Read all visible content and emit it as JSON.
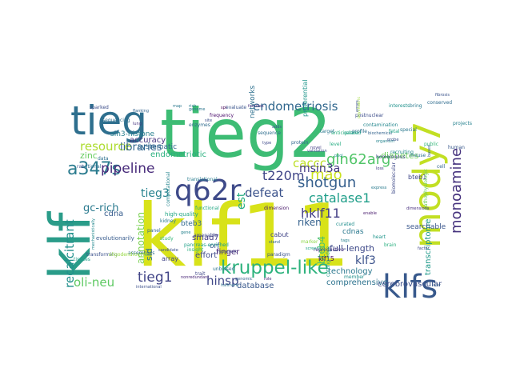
{
  "wordcloud": {
    "words": [
      {
        "text": "klf11",
        "color": "#d8e219"
      },
      {
        "text": "tieg2",
        "color": "#3dbc74"
      },
      {
        "text": "klf",
        "color": "#2a9c89"
      },
      {
        "text": "tieg",
        "color": "#2e6f8e"
      },
      {
        "text": "mody7",
        "color": "#c2df23"
      },
      {
        "text": "klfs",
        "color": "#38598c"
      },
      {
        "text": "q62r",
        "color": "#3e4a89"
      },
      {
        "text": "kruppel-like",
        "color": "#2db27d"
      },
      {
        "text": "endometriosis",
        "color": "#31678e"
      },
      {
        "text": "a347s",
        "color": "#2a7b8e"
      },
      {
        "text": "monoamine",
        "color": "#46337e"
      },
      {
        "text": "pipeline",
        "color": "#472a7a"
      },
      {
        "text": "gln62arg",
        "color": "#52c569"
      },
      {
        "text": "shotgun",
        "color": "#355f8d"
      },
      {
        "text": "recalcitrant",
        "color": "#21908c"
      },
      {
        "text": "tieg1",
        "color": "#414487"
      },
      {
        "text": "catalase1",
        "color": "#1f9e89"
      },
      {
        "text": "hklf11",
        "color": "#433e85"
      },
      {
        "text": "mao",
        "color": "#cae11f"
      },
      {
        "text": "defeat",
        "color": "#3b528b"
      },
      {
        "text": "resource",
        "color": "#addc30"
      },
      {
        "text": "caccc",
        "color": "#bddf26"
      },
      {
        "text": "t220m",
        "color": "#404688"
      },
      {
        "text": "msin3a",
        "color": "#443983"
      },
      {
        "text": "tieg3",
        "color": "#26828e"
      },
      {
        "text": "oli-neu",
        "color": "#5ec962"
      },
      {
        "text": "annotation",
        "color": "#7ad151"
      },
      {
        "text": "hinsp",
        "color": "#3f4788"
      },
      {
        "text": "libraries",
        "color": "#32648e"
      },
      {
        "text": "gc-rich",
        "color": "#29798e"
      },
      {
        "text": "bteb4",
        "color": "#4ac16d"
      },
      {
        "text": "sid",
        "color": "#2c718e"
      },
      {
        "text": "est",
        "color": "#25ac82"
      },
      {
        "text": "riken",
        "color": "#34618d"
      },
      {
        "text": "klf3",
        "color": "#3b528b"
      },
      {
        "text": "full-length",
        "color": "#3e4989"
      },
      {
        "text": "technology",
        "color": "#2a778e"
      },
      {
        "text": "diabetes",
        "color": "#6ccd5a"
      },
      {
        "text": "transcriptome",
        "color": "#1f998a"
      },
      {
        "text": "comprehensive",
        "color": "#2c728e"
      },
      {
        "text": "database",
        "color": "#38588c"
      },
      {
        "text": "cerebrovascular",
        "color": "#3c4f8a"
      },
      {
        "text": "finger",
        "color": "#482878"
      },
      {
        "text": "sin3-histone",
        "color": "#277f8e"
      },
      {
        "text": "systematic",
        "color": "#31688e"
      },
      {
        "text": "accuracy",
        "color": "#46327e"
      },
      {
        "text": "endometriotic",
        "color": "#2ab07f"
      },
      {
        "text": "zinc",
        "color": "#65cb5e"
      },
      {
        "text": "cdna",
        "color": "#365c8d"
      },
      {
        "text": "smad7",
        "color": "#443a83"
      },
      {
        "text": "bteb3",
        "color": "#31688e"
      },
      {
        "text": "effort",
        "color": "#3e4a89"
      },
      {
        "text": "array",
        "color": "#404688"
      },
      {
        "text": "orf",
        "color": "#3b528b"
      },
      {
        "text": "cabut",
        "color": "#414487"
      },
      {
        "text": "cdnas",
        "color": "#2a788e"
      },
      {
        "text": "searchable",
        "color": "#39568c"
      },
      {
        "text": "bteb1",
        "color": "#3f4788"
      },
      {
        "text": "klf15",
        "color": "#440154"
      },
      {
        "text": "preferential",
        "color": "#1f958b"
      },
      {
        "text": "networks",
        "color": "#2d708e"
      },
      {
        "text": "high-quality",
        "color": "#22a785"
      },
      {
        "text": "evolutionarily",
        "color": "#375b8d"
      },
      {
        "text": "assemblies",
        "color": "#2f6b8e"
      },
      {
        "text": "international",
        "color": "#3c508b"
      },
      {
        "text": "reproductive",
        "color": "#462f7e"
      },
      {
        "text": "paradigm",
        "color": "#3a548c"
      },
      {
        "text": "unbiased",
        "color": "#2b748e"
      },
      {
        "text": "cutting-edge",
        "color": "#1e9b8a"
      },
      {
        "text": "computational",
        "color": "#25848e"
      },
      {
        "text": "translational",
        "color": "#287c8e"
      },
      {
        "text": "mechanistically",
        "color": "#23898e"
      },
      {
        "text": "screening",
        "color": "#20a386"
      },
      {
        "text": "dimension",
        "color": "#48186a"
      },
      {
        "text": "represent",
        "color": "#42488a"
      },
      {
        "text": "transforming",
        "color": "#3b518b"
      },
      {
        "text": "genome",
        "color": "#2b748e"
      },
      {
        "text": "families",
        "color": "#472d7b"
      },
      {
        "text": "postnuclear",
        "color": "#3d4e8a"
      },
      {
        "text": "biochemical",
        "color": "#33638d"
      },
      {
        "text": "organism",
        "color": "#25858e"
      },
      {
        "text": "conserved",
        "color": "#2f6c8e"
      },
      {
        "text": "fibrosis",
        "color": "#3a538b"
      },
      {
        "text": "nonredundant",
        "color": "#482576"
      },
      {
        "text": "pancreas-enriched",
        "color": "#1fa088"
      },
      {
        "text": "marker",
        "color": "#8bd646"
      },
      {
        "text": "anticipated",
        "color": "#29af7f"
      },
      {
        "text": "validation",
        "color": "#3c4f8a"
      },
      {
        "text": "profile",
        "color": "#2e6e8e"
      },
      {
        "text": "recruiting",
        "color": "#23888e"
      },
      {
        "text": "enable",
        "color": "#481b6d"
      },
      {
        "text": "curated",
        "color": "#218e8d"
      },
      {
        "text": "tags",
        "color": "#27808e"
      },
      {
        "text": "genomic",
        "color": "#34608d"
      },
      {
        "text": "hallmark",
        "color": "#2c728e"
      },
      {
        "text": "biomolecular",
        "color": "#3e4989"
      },
      {
        "text": "pathophysiologic",
        "color": "#6ece58"
      },
      {
        "text": "oligodendrocyte",
        "color": "#95d840"
      },
      {
        "text": "tissues",
        "color": "#1e9c89"
      },
      {
        "text": "psychiatric",
        "color": "#9fda3a"
      },
      {
        "text": "dimensions",
        "color": "#472f7d"
      },
      {
        "text": "homologous",
        "color": "#3f4788"
      },
      {
        "text": "fetal",
        "color": "#20a386"
      },
      {
        "text": "stand",
        "color": "#33638d"
      },
      {
        "text": "pool",
        "color": "#218f8d"
      },
      {
        "text": "contamination",
        "color": "#24878e"
      },
      {
        "text": "national",
        "color": "#2e6d8e"
      },
      {
        "text": "based",
        "color": "#365d8d"
      },
      {
        "text": "evaluate",
        "color": "#3a548c"
      },
      {
        "text": "frequency",
        "color": "#4a0c6b"
      },
      {
        "text": "spi",
        "color": "#440154"
      },
      {
        "text": "errors",
        "color": "#3b528b"
      },
      {
        "text": "special",
        "color": "#2a788e"
      },
      {
        "text": "enzymes",
        "color": "#2f6b8e"
      },
      {
        "text": "projects",
        "color": "#26818e"
      },
      {
        "text": "adds",
        "color": "#39568c"
      },
      {
        "text": "bring",
        "color": "#297a8e"
      },
      {
        "text": "insight",
        "color": "#2ab07f"
      },
      {
        "text": "sparked",
        "color": "#3d4e8a"
      },
      {
        "text": "public",
        "color": "#35b779"
      },
      {
        "text": "amenable",
        "color": "#3e4a89"
      },
      {
        "text": "interests",
        "color": "#20928c"
      },
      {
        "text": "sequencing",
        "color": "#2d708e"
      },
      {
        "text": "candidate",
        "color": "#3b518b"
      },
      {
        "text": "functional",
        "color": "#22a884"
      },
      {
        "text": "flanking",
        "color": "#33638d"
      },
      {
        "text": "rich",
        "color": "#29798e"
      },
      {
        "text": "trait",
        "color": "#404688"
      },
      {
        "text": "target",
        "color": "#2a768e"
      },
      {
        "text": "role",
        "color": "#472a7a"
      },
      {
        "text": "mouse",
        "color": "#2c718e"
      },
      {
        "text": "human",
        "color": "#38588c"
      },
      {
        "text": "rat",
        "color": "#3b528b"
      },
      {
        "text": "sequence",
        "color": "#2e6e8e"
      },
      {
        "text": "protein",
        "color": "#31688e"
      },
      {
        "text": "gene",
        "color": "#26828e"
      },
      {
        "text": "related",
        "color": "#1f9e89"
      },
      {
        "text": "loss",
        "color": "#443983"
      },
      {
        "text": "level",
        "color": "#25ac82"
      },
      {
        "text": "type",
        "color": "#3e4989"
      },
      {
        "text": "cell",
        "color": "#32648e"
      },
      {
        "text": "express",
        "color": "#2a7b8e"
      },
      {
        "text": "factor",
        "color": "#3f4788"
      },
      {
        "text": "member",
        "color": "#21908c"
      },
      {
        "text": "novel",
        "color": "#433e85"
      },
      {
        "text": "study",
        "color": "#35b779"
      },
      {
        "text": "data",
        "color": "#2d708e"
      },
      {
        "text": "site",
        "color": "#3c4f8a"
      },
      {
        "text": "brain",
        "color": "#29af7f"
      },
      {
        "text": "liver",
        "color": "#365c8d"
      },
      {
        "text": "heart",
        "color": "#1f958b"
      },
      {
        "text": "kidney",
        "color": "#287c8e"
      },
      {
        "text": "lung",
        "color": "#46327e"
      },
      {
        "text": "panel",
        "color": "#31688e"
      },
      {
        "text": "map",
        "color": "#2a788e"
      },
      {
        "text": "probe",
        "color": "#3b528b"
      },
      {
        "text": "clone",
        "color": "#20a386"
      },
      {
        "text": "library",
        "color": "#39568c"
      }
    ]
  }
}
